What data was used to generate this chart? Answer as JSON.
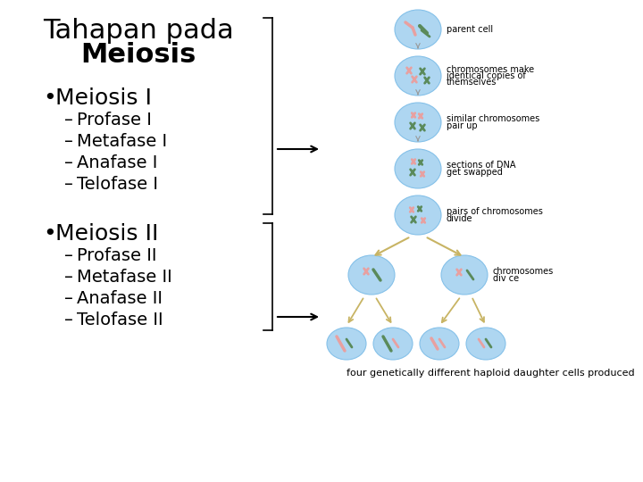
{
  "title_line1": "Tahapan pada",
  "title_line2": "Meiosis",
  "title_fontsize": 22,
  "bullet_fontsize": 18,
  "sub_fontsize": 14,
  "background_color": "#ffffff",
  "text_color": "#000000",
  "bracket_color": "#000000",
  "arrow_color": "#000000",
  "cell_color": "#aed6f1",
  "cell_edge_color": "#85c1e9",
  "chrom_pink": "#e8a0a0",
  "chrom_green": "#5a8a5a",
  "chrom_pink2": "#c87878",
  "chrom_green2": "#3a6a3a",
  "label_fontsize": 7,
  "arrow_tan": "#c8b464",
  "bottom_label": "four genetically different haploid daughter cells produced"
}
